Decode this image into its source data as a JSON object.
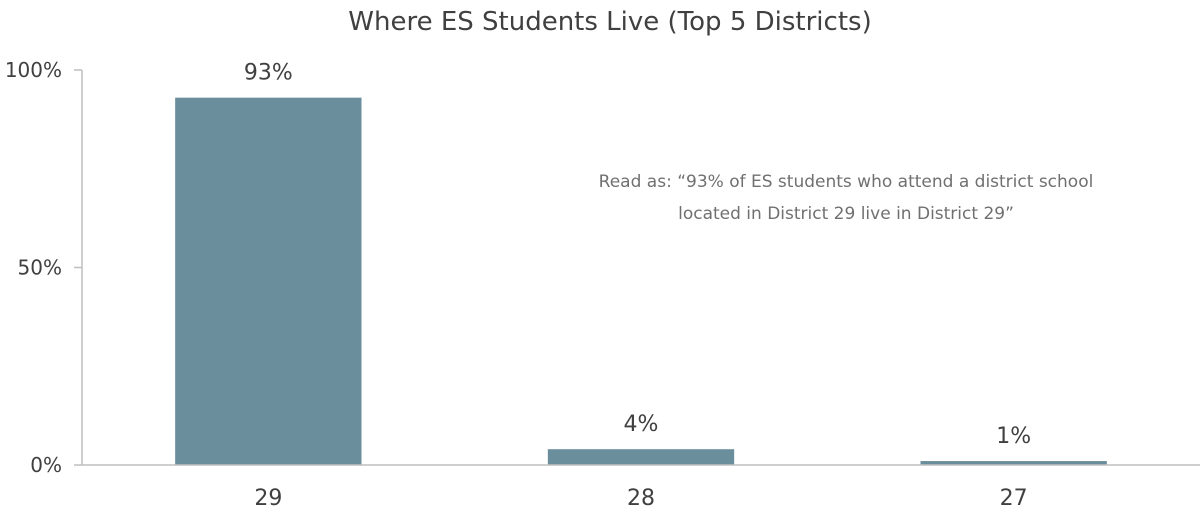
{
  "chart_data": {
    "type": "bar",
    "title": "Where ES Students Live (Top 5 Districts)",
    "xlabel": "",
    "ylabel": "",
    "categories": [
      "29",
      "28",
      "27"
    ],
    "values": [
      93,
      4,
      1
    ],
    "data_labels": [
      "93%",
      "4%",
      "1%"
    ],
    "ylim": [
      0,
      100
    ],
    "yticks": [
      0,
      50,
      100
    ],
    "ytick_labels": [
      "0%",
      "50%",
      "100%"
    ],
    "grid": false,
    "legend": "none",
    "bar_color": "#6a8e9c",
    "annotation": {
      "line1": "Read as: “93% of ES students who attend a district school",
      "line2": "located in District 29 live in District 29”"
    }
  }
}
